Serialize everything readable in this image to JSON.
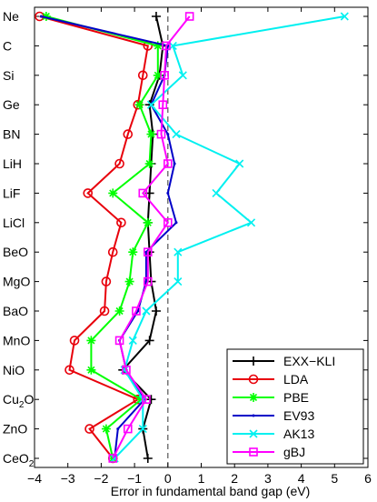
{
  "chart_data": {
    "type": "line",
    "orientation": "horizontal-values",
    "xlabel": "Error in fundamental band gap   (eV)",
    "ylabel": "",
    "xlim": [
      -4,
      6
    ],
    "xticks": [
      -4,
      -3,
      -2,
      -1,
      0,
      1,
      2,
      3,
      4,
      5,
      6
    ],
    "categories": [
      "Ne",
      "C",
      "Si",
      "Ge",
      "BN",
      "LiH",
      "LiF",
      "LiCl",
      "BeO",
      "MgO",
      "BaO",
      "MnO",
      "NiO",
      "Cu2O",
      "ZnO",
      "CeO2"
    ],
    "reference_line_x": 0,
    "grid": false,
    "legend_position": "bottom-right",
    "series": [
      {
        "name": "EXX−KLI",
        "color": "#000000",
        "marker": "plus",
        "values": [
          -0.35,
          -0.15,
          -0.25,
          -0.55,
          -0.45,
          -0.5,
          -0.55,
          -0.6,
          -0.55,
          -0.5,
          -0.35,
          -0.55,
          -1.35,
          -0.5,
          -0.75,
          -0.6
        ]
      },
      {
        "name": "LDA",
        "color": "#e8000b",
        "marker": "circle",
        "values": [
          -3.85,
          -0.6,
          -0.75,
          -0.9,
          -1.2,
          -1.45,
          -2.4,
          -1.4,
          -1.65,
          -1.85,
          -1.9,
          -2.8,
          -2.95,
          -0.9,
          -2.35,
          -1.65
        ]
      },
      {
        "name": "PBE",
        "color": "#00ff00",
        "marker": "asterisk",
        "values": [
          -3.65,
          -0.3,
          -0.3,
          -0.85,
          -0.5,
          -0.55,
          -1.65,
          -0.6,
          -1.05,
          -1.15,
          -1.45,
          -2.3,
          -2.3,
          -0.8,
          -1.85,
          -1.65
        ]
      },
      {
        "name": "EV93",
        "color": "#0000c8",
        "marker": "dot",
        "values": [
          -3.8,
          0.0,
          -0.1,
          -0.5,
          0.0,
          0.2,
          0.0,
          0.25,
          -0.65,
          -0.65,
          -0.9,
          -1.45,
          -1.25,
          -0.7,
          -1.5,
          -1.6
        ]
      },
      {
        "name": "AK13",
        "color": "#00f0f0",
        "marker": "x",
        "values": [
          5.3,
          0.15,
          0.45,
          -0.5,
          0.25,
          2.15,
          1.45,
          2.5,
          0.3,
          0.3,
          -0.65,
          -1.05,
          -1.3,
          -0.75,
          -0.75,
          -1.6
        ]
      },
      {
        "name": "gBJ",
        "color": "#ff00ff",
        "marker": "square",
        "values": [
          0.65,
          -0.05,
          -0.1,
          -0.15,
          -0.2,
          0.0,
          -0.75,
          0.0,
          -0.6,
          -0.6,
          -0.95,
          -1.45,
          -1.25,
          -0.65,
          -1.2,
          -1.65
        ]
      }
    ]
  }
}
